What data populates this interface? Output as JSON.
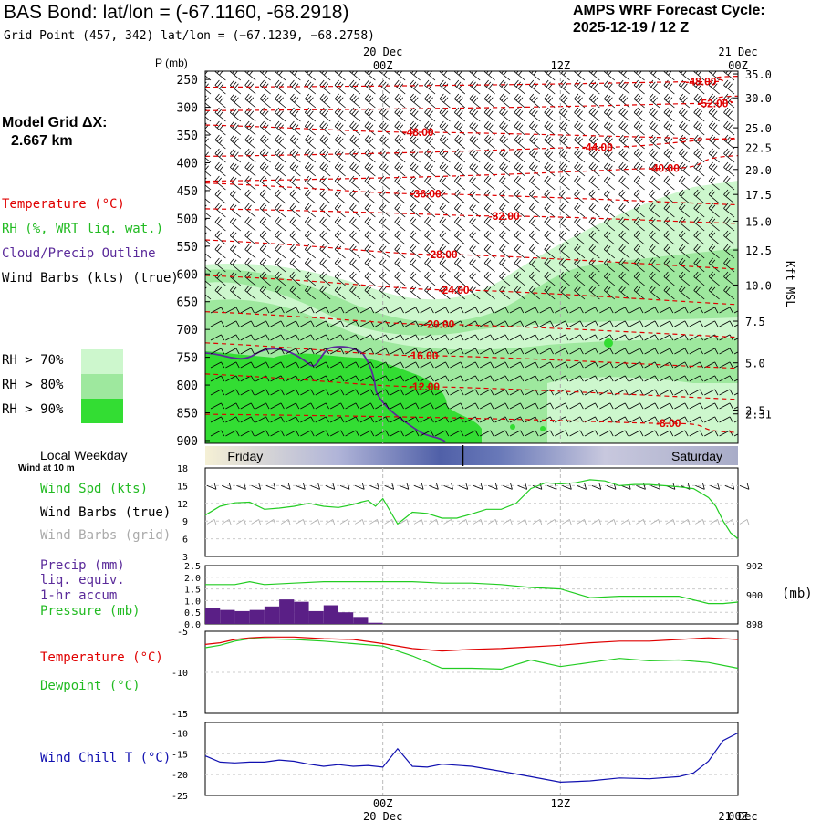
{
  "header": {
    "title": "BAS Bond:  lat/lon = (-67.1160, -68.2918)",
    "grid_point": "Grid Point (457, 342) lat/lon = (−67.1239, −68.2758)",
    "forecast_label": "AMPS WRF Forecast Cycle:",
    "forecast_cycle": "2025-12-19 / 12  Z"
  },
  "sidebar": {
    "model_grid_label": "Model Grid ΔX:",
    "model_grid_value": "2.667 km",
    "temperature_legend": "Temperature (°C)",
    "rh_legend": "RH (%, WRT liq. wat.)",
    "cloud_legend": "Cloud/Precip Outline",
    "wind_legend": "Wind Barbs (kts) (true)",
    "rh70": "RH > 70%",
    "rh80": "RH > 80%",
    "rh90": "RH > 90%"
  },
  "colors": {
    "temp": "#e00000",
    "rh70": "#cdf7cd",
    "rh80": "#9ee89e",
    "rh90": "#33dd33",
    "cloud": "#5a2a9a",
    "precip": "#5a1f86",
    "wind_line": "#22cc22",
    "pressure": "#22cc22",
    "dewpoint": "#22cc22",
    "windchill": "#1010b0",
    "grid_barb": "#aaaaaa"
  },
  "chart_data": [
    {
      "id": "cross_section",
      "type": "heatmap",
      "ylabel": "P (mb)",
      "right_axis_label": "Kft MSL",
      "pressure_ticks": [
        "250",
        "300",
        "350",
        "400",
        "450",
        "500",
        "550",
        "600",
        "650",
        "700",
        "750",
        "800",
        "850",
        "900"
      ],
      "height_ticks": [
        {
          "label": "35.0",
          "p": 240
        },
        {
          "label": "30.0",
          "p": 283
        },
        {
          "label": "25.0",
          "p": 337
        },
        {
          "label": "22.5",
          "p": 372
        },
        {
          "label": "20.0",
          "p": 412
        },
        {
          "label": "17.5",
          "p": 457
        },
        {
          "label": "15.0",
          "p": 505
        },
        {
          "label": "12.5",
          "p": 557
        },
        {
          "label": "10.0",
          "p": 620
        },
        {
          "label": "7.5",
          "p": 685
        },
        {
          "label": "5.0",
          "p": 760
        },
        {
          "label": "2.5",
          "p": 845
        },
        {
          "label": "2.31",
          "p": 852
        }
      ],
      "time_top_labels": [
        {
          "hour": 12,
          "label": "20 Dec"
        },
        {
          "hour": 12,
          "label": "00Z"
        },
        {
          "hour": 24,
          "label": "12Z"
        },
        {
          "hour": 36,
          "label": "21 Dec"
        },
        {
          "hour": 36,
          "label": "00Z"
        }
      ],
      "temperature_labels": [
        {
          "label": "-48.00",
          "hour": 33.5,
          "p": 254
        },
        {
          "label": "-52.00",
          "hour": 34.3,
          "p": 293
        },
        {
          "label": "-48.00",
          "hour": 14.4,
          "p": 345
        },
        {
          "label": "-44.00",
          "hour": 26.5,
          "p": 372
        },
        {
          "label": "-40.00",
          "hour": 31.0,
          "p": 410
        },
        {
          "label": "-36.00",
          "hour": 14.9,
          "p": 456
        },
        {
          "label": "-32.00",
          "hour": 20.2,
          "p": 496
        },
        {
          "label": "-28.00",
          "hour": 16.0,
          "p": 565
        },
        {
          "label": "-24.00",
          "hour": 16.8,
          "p": 629
        },
        {
          "label": "-20.00",
          "hour": 15.8,
          "p": 691
        },
        {
          "label": "-16.00",
          "hour": 14.7,
          "p": 747
        },
        {
          "label": "-12.00",
          "hour": 14.8,
          "p": 803
        },
        {
          "label": "-8.00",
          "hour": 31.3,
          "p": 869
        }
      ]
    },
    {
      "id": "weekday",
      "type": "bar",
      "title": "Local Weekday",
      "days": [
        {
          "label": "Friday",
          "hour": 1.5
        },
        {
          "label": "Saturday",
          "hour": 31.5
        }
      ],
      "local_midnight_hour": 17.4
    },
    {
      "id": "wind",
      "type": "line",
      "title": "Wind at 10 m",
      "legend": [
        "Wind Spd (kts)",
        "Wind Barbs (true)",
        "Wind Barbs (grid)"
      ],
      "ylim": [
        3,
        18
      ],
      "yticks": [
        "3",
        "6",
        "9",
        "12",
        "15",
        "18"
      ],
      "x": [
        0,
        1,
        2,
        3,
        4,
        5,
        6,
        7,
        8,
        9,
        10,
        10.5,
        11,
        11.5,
        12,
        13,
        14,
        15,
        16,
        17,
        18,
        19,
        20,
        21,
        22,
        23,
        24,
        25,
        26,
        27,
        28,
        29,
        30,
        31,
        32,
        33,
        34,
        34.5,
        35,
        35.5,
        36
      ],
      "values": [
        10,
        11.5,
        12.1,
        12.2,
        11.0,
        11.2,
        11.5,
        12.0,
        11.5,
        11.3,
        11.8,
        12.2,
        12.5,
        11.5,
        12.8,
        8.5,
        10.5,
        10.3,
        9.5,
        9.5,
        10.2,
        11.0,
        11.0,
        12.0,
        14.5,
        15.5,
        15.3,
        15.5,
        16.0,
        15.8,
        15.0,
        15.2,
        15.2,
        15.0,
        14.8,
        14.5,
        13.0,
        11.5,
        9.0,
        7.0,
        6.0
      ]
    },
    {
      "id": "precip_pressure",
      "type": "bar",
      "legend": [
        "Precip (mm)",
        "liq. equiv.",
        "1-hr accum",
        "Pressure (mb)"
      ],
      "precip_ylim": [
        0,
        2.5
      ],
      "precip_yticks": [
        "0.0",
        "0.5",
        "1.0",
        "1.5",
        "2.0",
        "2.5"
      ],
      "precip_hours": [
        0,
        1,
        2,
        3,
        4,
        5,
        6,
        7,
        8,
        9,
        10,
        11,
        12
      ],
      "precip_values": [
        0.7,
        0.6,
        0.55,
        0.6,
        0.75,
        1.05,
        0.95,
        0.55,
        0.8,
        0.5,
        0.3,
        0.05
      ],
      "pressure_ylim": [
        898,
        902
      ],
      "pressure_yticks": [
        "898",
        "900",
        "902"
      ],
      "pressure_unit": "(mb)",
      "pressure_x": [
        0,
        2,
        3,
        4,
        6,
        8,
        10,
        12,
        14,
        16,
        18,
        20,
        22,
        24,
        26,
        28,
        30,
        32,
        34,
        35,
        36
      ],
      "pressure_values": [
        900.7,
        900.7,
        900.9,
        900.7,
        900.8,
        900.9,
        900.9,
        900.9,
        900.9,
        900.8,
        900.8,
        900.7,
        900.5,
        900.4,
        899.8,
        899.9,
        899.9,
        899.9,
        899.4,
        899.4,
        899.5
      ]
    },
    {
      "id": "temperature",
      "type": "line",
      "legend": [
        "Temperature (°C)",
        "Dewpoint (°C)"
      ],
      "ylim": [
        -15,
        -5
      ],
      "yticks": [
        "-5",
        "-10",
        "-15"
      ],
      "x": [
        0,
        1,
        2,
        3,
        4,
        6,
        8,
        10,
        12,
        14,
        16,
        18,
        20,
        22,
        24,
        26,
        28,
        30,
        32,
        34,
        36
      ],
      "temperature": [
        -6.6,
        -6.4,
        -6.0,
        -5.8,
        -5.7,
        -5.7,
        -5.9,
        -6.0,
        -6.5,
        -7.1,
        -7.4,
        -7.2,
        -7.1,
        -6.9,
        -6.7,
        -6.4,
        -6.2,
        -6.2,
        -6.0,
        -5.8,
        -6.0
      ],
      "dewpoint": [
        -7.0,
        -6.7,
        -6.2,
        -5.9,
        -5.9,
        -6.0,
        -6.2,
        -6.5,
        -6.8,
        -8.0,
        -9.5,
        -9.5,
        -9.6,
        -8.5,
        -9.3,
        -8.8,
        -8.3,
        -8.6,
        -8.5,
        -8.8,
        -9.5
      ]
    },
    {
      "id": "windchill",
      "type": "line",
      "legend": [
        "Wind Chill T (°C)"
      ],
      "ylim": [
        -25,
        -10
      ],
      "yticks": [
        "-10",
        "-15",
        "-20",
        "-25"
      ],
      "x": [
        0,
        1,
        2,
        3,
        4,
        5,
        6,
        7,
        8,
        9,
        10,
        11,
        12,
        13,
        14,
        15,
        16,
        18,
        20,
        22,
        24,
        26,
        28,
        30,
        32,
        33,
        34,
        35,
        36
      ],
      "values": [
        -15.5,
        -17.0,
        -17.2,
        -17.0,
        -17.0,
        -16.5,
        -16.8,
        -17.5,
        -18.0,
        -17.6,
        -18.0,
        -17.8,
        -18.2,
        -13.8,
        -18.0,
        -18.2,
        -17.5,
        -18.0,
        -19.2,
        -20.5,
        -21.8,
        -21.5,
        -20.8,
        -21.0,
        -20.5,
        -19.6,
        -16.8,
        -11.8,
        -10.0
      ]
    },
    {
      "id": "bottom_axis",
      "type": "line",
      "time_labels": [
        {
          "hour": 12,
          "label": "00Z"
        },
        {
          "hour": 12,
          "label": "20 Dec"
        },
        {
          "hour": 24,
          "label": "12Z"
        },
        {
          "hour": 36,
          "label": "00Z"
        },
        {
          "hour": 36,
          "label": "21 Dec"
        }
      ]
    }
  ]
}
